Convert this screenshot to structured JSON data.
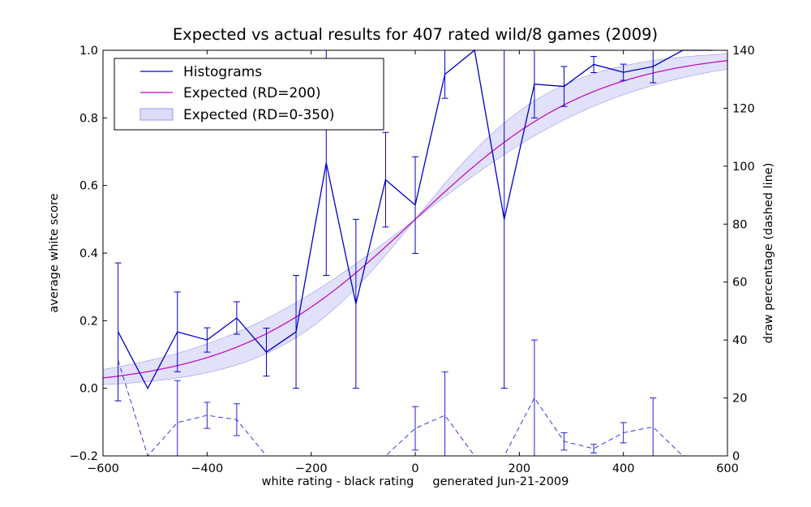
{
  "chart_data": {
    "type": "line",
    "title": "Expected vs actual results for 407 rated wild/8 games (2009)",
    "xlabel": "white rating - black rating     generated Jun-21-2009",
    "ylabel": "average white score",
    "y2label": "draw percentage (dashed line)",
    "xlim": [
      -600,
      600
    ],
    "ylim": [
      -0.2,
      1.0
    ],
    "y2lim": [
      0,
      140
    ],
    "xticks": [
      "−600",
      "−400",
      "−200",
      "0",
      "200",
      "400",
      "600"
    ],
    "yticks": [
      "−0.2",
      "0.0",
      "0.2",
      "0.4",
      "0.6",
      "0.8",
      "1.0"
    ],
    "y2ticks": [
      "0",
      "20",
      "40",
      "60",
      "80",
      "100",
      "120",
      "140"
    ],
    "grid": false,
    "legend_position": "top-left",
    "legend": [
      "Histograms",
      "Expected (RD=200)",
      "Expected (RD=0-350)"
    ],
    "colors": {
      "histogram": "#0000cc",
      "expected": "#bf00bf",
      "band_fill": "#dcdcf8",
      "band_edge": "#9a9af0",
      "draw": "#2222dd"
    },
    "series": [
      {
        "name": "Histograms",
        "x": [
          -571,
          -514,
          -457,
          -400,
          -343,
          -286,
          -229,
          -171,
          -114,
          -57,
          0,
          57,
          114,
          171,
          229,
          286,
          343,
          400,
          457,
          514,
          571
        ],
        "values": [
          0.167,
          0.0,
          0.167,
          0.143,
          0.208,
          0.107,
          0.167,
          0.667,
          0.25,
          0.617,
          0.542,
          0.929,
          1.0,
          0.5,
          0.9,
          0.893,
          0.958,
          0.935,
          0.952,
          1.0,
          1.0
        ],
        "error": [
          0.204,
          0.0,
          0.118,
          0.036,
          0.048,
          0.071,
          0.167,
          0.333,
          0.25,
          0.14,
          0.143,
          0.071,
          0.0,
          0.5,
          0.1,
          0.059,
          0.024,
          0.024,
          0.048,
          0.0,
          0.0
        ]
      },
      {
        "name": "Expected (RD=200)",
        "function": "logistic",
        "scale": 400
      },
      {
        "name": "Expected (RD=0-350)",
        "function": "logistic_band",
        "rd_range": [
          0,
          350
        ]
      },
      {
        "x": [
          -571,
          -514,
          -457,
          -400,
          -343,
          -286,
          -229,
          -171,
          -114,
          -57,
          0,
          57,
          114,
          171,
          229,
          286,
          343,
          400,
          457,
          514,
          571
        ],
        "values": [
          33,
          0,
          11.5,
          14,
          12.5,
          0,
          0,
          0,
          0,
          0,
          9.5,
          14,
          0,
          0,
          20,
          5,
          2.5,
          8,
          10,
          0,
          0
        ],
        "error": [
          0,
          0,
          14.5,
          4.5,
          5.5,
          0,
          0,
          0,
          0,
          0,
          7.5,
          15,
          0,
          0,
          20,
          3,
          1.5,
          3.5,
          10,
          0,
          0
        ]
      }
    ]
  }
}
